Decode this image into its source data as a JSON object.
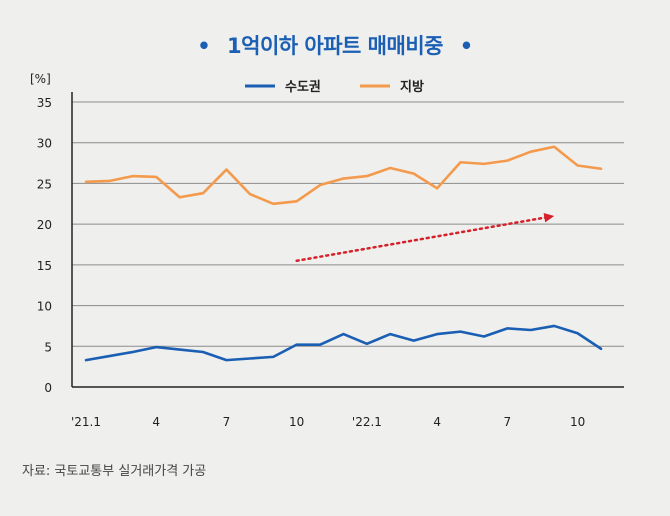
{
  "chart_data": {
    "type": "line",
    "title": "1억이하 아파트 매매비중",
    "title_bullet": "•",
    "ylabel": "[%]",
    "ylim": [
      0,
      35
    ],
    "yticks": [
      0,
      5,
      10,
      15,
      20,
      25,
      30,
      35
    ],
    "grid": true,
    "legend_position": "top-center",
    "x": [
      1,
      2,
      3,
      4,
      5,
      6,
      7,
      8,
      9,
      10,
      11,
      12,
      13,
      14,
      15,
      16,
      17,
      18,
      19,
      20,
      21,
      22,
      23
    ],
    "x_tick_labels": [
      {
        "x": 1,
        "label": "'21.1"
      },
      {
        "x": 4,
        "label": "4"
      },
      {
        "x": 7,
        "label": "7"
      },
      {
        "x": 10,
        "label": "10"
      },
      {
        "x": 13,
        "label": "'22.1"
      },
      {
        "x": 16,
        "label": "4"
      },
      {
        "x": 19,
        "label": "7"
      },
      {
        "x": 22,
        "label": "10"
      }
    ],
    "series": [
      {
        "name": "수도권",
        "color": "#1a5fb4",
        "values": [
          3.3,
          3.8,
          4.3,
          4.9,
          4.6,
          4.3,
          3.3,
          3.5,
          3.7,
          5.2,
          5.2,
          6.5,
          5.3,
          6.5,
          5.7,
          6.5,
          6.8,
          6.2,
          7.2,
          7.0,
          7.5,
          6.6,
          4.7
        ]
      },
      {
        "name": "지방",
        "color": "#f39a4c",
        "values": [
          25.2,
          25.3,
          25.9,
          25.8,
          23.3,
          23.8,
          26.7,
          23.7,
          22.5,
          22.8,
          24.8,
          25.6,
          25.9,
          26.9,
          26.2,
          24.4,
          27.6,
          27.4,
          27.8,
          28.9,
          29.5,
          27.2,
          26.8
        ]
      }
    ],
    "annotation": {
      "type": "trend-arrow",
      "color": "#d6202a",
      "from": {
        "x": 10,
        "y": 15.5
      },
      "to": {
        "x": 21,
        "y": 21
      }
    }
  },
  "source": "자료: 국토교통부 실거래가격 가공"
}
